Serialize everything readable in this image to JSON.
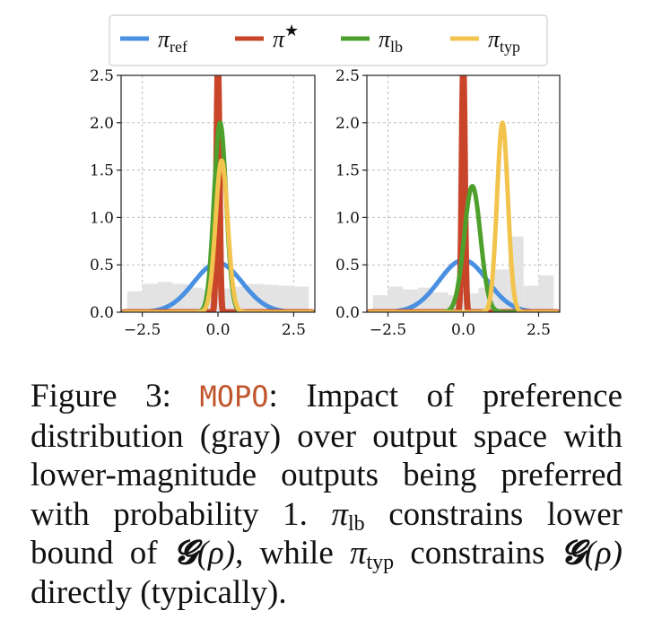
{
  "legend": [
    {
      "symbol": "π",
      "sub": "ref",
      "sup": "",
      "color": "#4a90e2"
    },
    {
      "symbol": "π",
      "sub": "",
      "sup": "★",
      "color": "#c9452a"
    },
    {
      "symbol": "π",
      "sub": "lb",
      "sup": "",
      "color": "#4ea02c"
    },
    {
      "symbol": "π",
      "sub": "typ",
      "sup": "",
      "color": "#f2c44e"
    }
  ],
  "colors": {
    "ref": "#4a90e2",
    "star": "#c9452a",
    "lb": "#4ea02c",
    "typ": "#f2c44e",
    "hist": "#e3e3e3",
    "grid": "#bdbdbd"
  },
  "chart_data": [
    {
      "type": "line",
      "title": "",
      "xlabel": "",
      "ylabel": "",
      "xlim": [
        -3.2,
        3.2
      ],
      "ylim": [
        0,
        2.5
      ],
      "x_ticks": [
        -2.5,
        0.0,
        2.5
      ],
      "x_tick_labels": [
        "−2.5",
        "0.0",
        "2.5"
      ],
      "y_ticks": [
        0.0,
        0.5,
        1.0,
        1.5,
        2.0,
        2.5
      ],
      "y_tick_labels": [
        "0.0",
        "0.5",
        "1.0",
        "1.5",
        "2.0",
        "2.5"
      ],
      "grid": true,
      "histogram": {
        "bin_edges": [
          -3.0,
          -2.5,
          -2.0,
          -1.5,
          -1.0,
          -0.5,
          0.0,
          0.5,
          1.0,
          1.5,
          2.0,
          2.5,
          3.0
        ],
        "heights": [
          0.22,
          0.3,
          0.32,
          0.3,
          0.26,
          0.24,
          0.25,
          0.27,
          0.3,
          0.29,
          0.28,
          0.27
        ]
      },
      "series": [
        {
          "name": "ref",
          "kind": "gaussian",
          "mean": 0.0,
          "sd": 0.8,
          "peak": 0.52
        },
        {
          "name": "star",
          "kind": "gaussian",
          "mean": 0.0,
          "sd": 0.05,
          "peak": 2.6
        },
        {
          "name": "lb",
          "kind": "gaussian",
          "mean": 0.07,
          "sd": 0.2,
          "peak": 2.0
        },
        {
          "name": "typ",
          "kind": "gaussian",
          "mean": 0.12,
          "sd": 0.2,
          "peak": 1.6
        }
      ]
    },
    {
      "type": "line",
      "title": "",
      "xlabel": "",
      "ylabel": "",
      "xlim": [
        -3.2,
        3.2
      ],
      "ylim": [
        0,
        2.5
      ],
      "x_ticks": [
        -2.5,
        0.0,
        2.5
      ],
      "x_tick_labels": [
        "−2.5",
        "0.0",
        "2.5"
      ],
      "y_ticks": [
        0.0,
        0.5,
        1.0,
        1.5,
        2.0,
        2.5
      ],
      "y_tick_labels": [
        "0.0",
        "0.5",
        "1.0",
        "1.5",
        "2.0",
        "2.5"
      ],
      "grid": true,
      "histogram": {
        "bin_edges": [
          -3.0,
          -2.5,
          -2.0,
          -1.5,
          -1.0,
          -0.5,
          0.0,
          0.5,
          1.0,
          1.5,
          2.0,
          2.5,
          3.0
        ],
        "heights": [
          0.18,
          0.27,
          0.24,
          0.26,
          0.21,
          0.18,
          0.2,
          0.26,
          0.45,
          0.8,
          0.28,
          0.39
        ]
      },
      "series": [
        {
          "name": "ref",
          "kind": "gaussian",
          "mean": 0.0,
          "sd": 0.8,
          "peak": 0.55
        },
        {
          "name": "star",
          "kind": "gaussian",
          "mean": 0.0,
          "sd": 0.05,
          "peak": 2.6
        },
        {
          "name": "lb",
          "kind": "gaussian",
          "mean": 0.3,
          "sd": 0.27,
          "peak": 1.33
        },
        {
          "name": "typ",
          "kind": "gaussian",
          "mean": 1.3,
          "sd": 0.18,
          "peak": 2.0
        }
      ]
    }
  ],
  "caption": {
    "prefix": "Figure 3:",
    "method": "MOPO",
    "text1": ": Impact of preference distribution (gray) over output space with lower-magnitude outputs being preferred with probability 1.",
    "pi1": "π",
    "sub1": "lb",
    "text2": " constrains lower bound of ",
    "g1": "𝓖",
    "rho1": "(ρ)",
    "text3": ", while ",
    "pi2": "π",
    "sub2": "typ",
    "text4": " constrains ",
    "g2": "𝓖",
    "rho2": "(ρ)",
    "text5": " directly (typically)."
  }
}
